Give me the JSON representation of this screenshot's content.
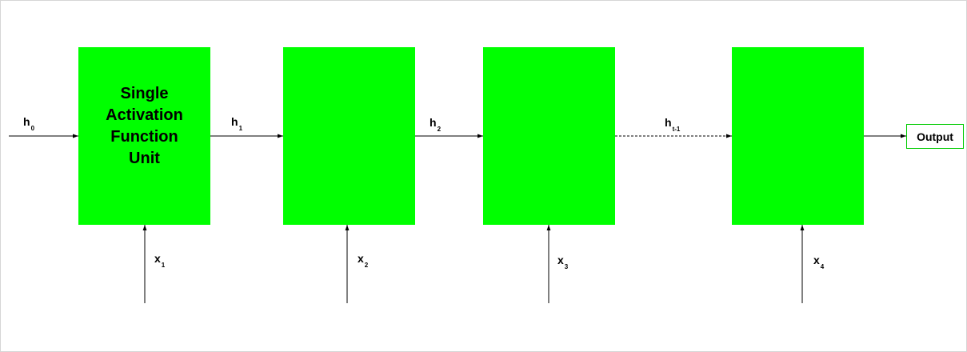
{
  "diagram": {
    "unit_labels": [
      "Single\nActivation\nFunction\nUnit",
      "",
      "",
      ""
    ],
    "hidden_states": [
      {
        "base": "h",
        "sub": "0"
      },
      {
        "base": "h",
        "sub": "1"
      },
      {
        "base": "h",
        "sub": "2"
      },
      {
        "base": "h",
        "sub": "t-1"
      }
    ],
    "inputs": [
      {
        "base": "x",
        "sub": "1"
      },
      {
        "base": "x",
        "sub": "2"
      },
      {
        "base": "x",
        "sub": "3"
      },
      {
        "base": "x",
        "sub": "4"
      }
    ],
    "output_label": "Output",
    "colors": {
      "unit_fill": "#00ff00",
      "output_border": "#00cc00",
      "wire": "#000000"
    }
  }
}
